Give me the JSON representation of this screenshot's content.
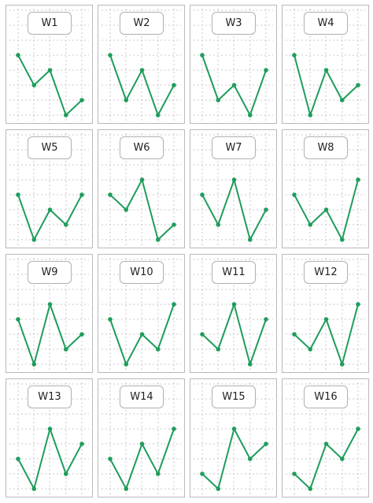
{
  "colors": {
    "line": "#1f9d5c",
    "grid": "#c8c8c8",
    "border": "#b9b9b9"
  },
  "chart_data": [
    {
      "type": "line",
      "title": "W1",
      "x": [
        1,
        2,
        3,
        4,
        5
      ],
      "values": [
        4,
        2,
        3,
        0,
        1
      ],
      "ylim": [
        -1,
        5
      ],
      "grid": true
    },
    {
      "type": "line",
      "title": "W2",
      "x": [
        1,
        2,
        3,
        4,
        5
      ],
      "values": [
        4,
        1,
        3,
        0,
        2
      ],
      "ylim": [
        -1,
        5
      ],
      "grid": true
    },
    {
      "type": "line",
      "title": "W3",
      "x": [
        1,
        2,
        3,
        4,
        5
      ],
      "values": [
        4,
        1,
        2,
        0,
        3
      ],
      "ylim": [
        -1,
        5
      ],
      "grid": true
    },
    {
      "type": "line",
      "title": "W4",
      "x": [
        1,
        2,
        3,
        4,
        5
      ],
      "values": [
        4,
        0,
        3,
        1,
        2
      ],
      "ylim": [
        -1,
        5
      ],
      "grid": true
    },
    {
      "type": "line",
      "title": "W5",
      "x": [
        1,
        2,
        3,
        4,
        5
      ],
      "values": [
        3,
        0,
        2,
        1,
        3
      ],
      "ylim": [
        -1,
        5
      ],
      "grid": true
    },
    {
      "type": "line",
      "title": "W6",
      "x": [
        1,
        2,
        3,
        4,
        5
      ],
      "values": [
        3,
        2,
        4,
        0,
        1
      ],
      "ylim": [
        -1,
        5
      ],
      "grid": true
    },
    {
      "type": "line",
      "title": "W7",
      "x": [
        1,
        2,
        3,
        4,
        5
      ],
      "values": [
        3,
        1,
        4,
        0,
        2
      ],
      "ylim": [
        -1,
        5
      ],
      "grid": true
    },
    {
      "type": "line",
      "title": "W8",
      "x": [
        1,
        2,
        3,
        4,
        5
      ],
      "values": [
        3,
        1,
        2,
        0,
        4
      ],
      "ylim": [
        -1,
        5
      ],
      "grid": true
    },
    {
      "type": "line",
      "title": "W9",
      "x": [
        1,
        2,
        3,
        4,
        5
      ],
      "values": [
        3,
        0,
        4,
        1,
        2
      ],
      "ylim": [
        -1,
        5
      ],
      "grid": true
    },
    {
      "type": "line",
      "title": "W10",
      "x": [
        1,
        2,
        3,
        4,
        5
      ],
      "values": [
        3,
        0,
        2,
        1,
        4
      ],
      "ylim": [
        -1,
        5
      ],
      "grid": true
    },
    {
      "type": "line",
      "title": "W11",
      "x": [
        1,
        2,
        3,
        4,
        5
      ],
      "values": [
        2,
        1,
        4,
        0,
        3
      ],
      "ylim": [
        -1,
        5
      ],
      "grid": true
    },
    {
      "type": "line",
      "title": "W12",
      "x": [
        1,
        2,
        3,
        4,
        5
      ],
      "values": [
        2,
        1,
        3,
        0,
        4
      ],
      "ylim": [
        -1,
        5
      ],
      "grid": true
    },
    {
      "type": "line",
      "title": "W13",
      "x": [
        1,
        2,
        3,
        4,
        5
      ],
      "values": [
        2,
        0,
        4,
        1,
        3
      ],
      "ylim": [
        -1,
        5
      ],
      "grid": true
    },
    {
      "type": "line",
      "title": "W14",
      "x": [
        1,
        2,
        3,
        4,
        5
      ],
      "values": [
        2,
        0,
        3,
        1,
        4
      ],
      "ylim": [
        -1,
        5
      ],
      "grid": true
    },
    {
      "type": "line",
      "title": "W15",
      "x": [
        1,
        2,
        3,
        4,
        5
      ],
      "values": [
        1,
        0,
        4,
        2,
        3
      ],
      "ylim": [
        -1,
        5
      ],
      "grid": true
    },
    {
      "type": "line",
      "title": "W16",
      "x": [
        1,
        2,
        3,
        4,
        5
      ],
      "values": [
        1,
        0,
        3,
        2,
        4
      ],
      "ylim": [
        -1,
        5
      ],
      "grid": true
    }
  ]
}
